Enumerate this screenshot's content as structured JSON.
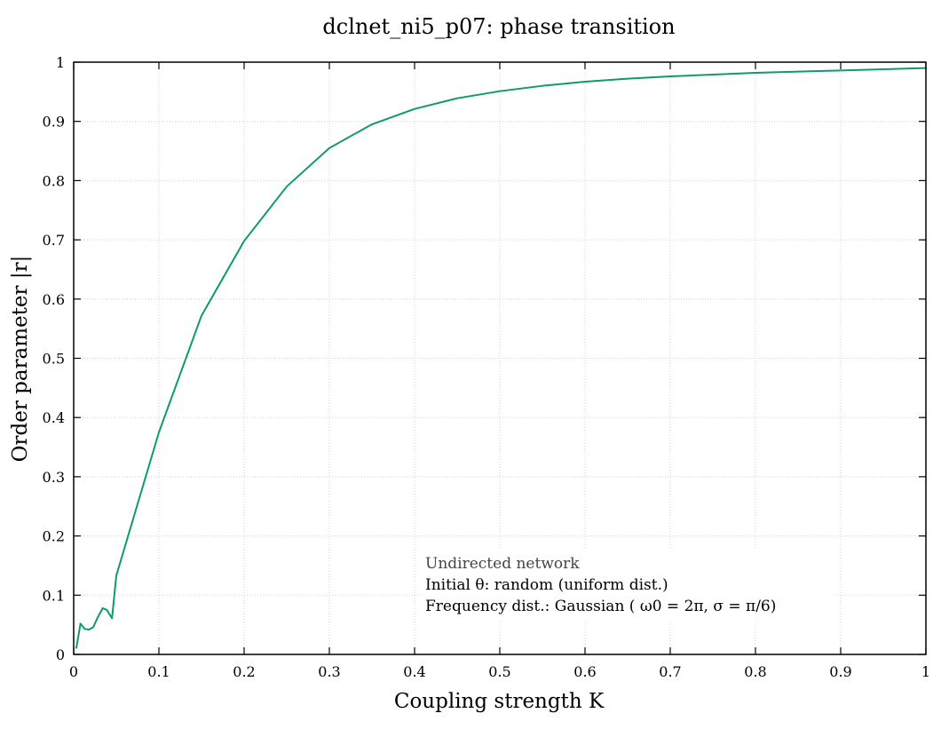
{
  "chart_data": {
    "type": "line",
    "title": "dclnet_ni5_p07: phase transition",
    "xlabel": "Coupling strength K",
    "ylabel": "Order parameter |r|",
    "xlim": [
      0,
      1
    ],
    "ylim": [
      0,
      1
    ],
    "xticks": [
      0,
      0.1,
      0.2,
      0.3,
      0.4,
      0.5,
      0.6,
      0.7,
      0.8,
      0.9,
      1
    ],
    "xtick_labels": [
      "0",
      "0.1",
      "0.2",
      "0.3",
      "0.4",
      "0.5",
      "0.6",
      "0.7",
      "0.8",
      "0.9",
      "1"
    ],
    "yticks": [
      0,
      0.1,
      0.2,
      0.3,
      0.4,
      0.5,
      0.6,
      0.7,
      0.8,
      0.9,
      1
    ],
    "ytick_labels": [
      "0",
      "0.1",
      "0.2",
      "0.3",
      "0.4",
      "0.5",
      "0.6",
      "0.7",
      "0.8",
      "0.9",
      "1"
    ],
    "grid": true,
    "line_color": "#0f9a6e",
    "series": [
      {
        "x": [
          0.003,
          0.008,
          0.013,
          0.018,
          0.023,
          0.028,
          0.034,
          0.039,
          0.045,
          0.05,
          0.1,
          0.15,
          0.2,
          0.25,
          0.3,
          0.35,
          0.4,
          0.45,
          0.5,
          0.55,
          0.6,
          0.65,
          0.7,
          0.75,
          0.8,
          0.85,
          0.9,
          0.95,
          1.0
        ],
        "y": [
          0.01,
          0.052,
          0.043,
          0.042,
          0.046,
          0.062,
          0.078,
          0.075,
          0.061,
          0.133,
          0.375,
          0.572,
          0.698,
          0.79,
          0.855,
          0.895,
          0.921,
          0.939,
          0.951,
          0.96,
          0.967,
          0.972,
          0.976,
          0.979,
          0.982,
          0.984,
          0.986,
          0.988,
          0.99
        ]
      }
    ],
    "annotations": [
      "Undirected network",
      "Initial θ: random (uniform dist.)",
      "Frequency dist.: Gaussian ( ω0 = 2π, σ = π/6)"
    ]
  }
}
